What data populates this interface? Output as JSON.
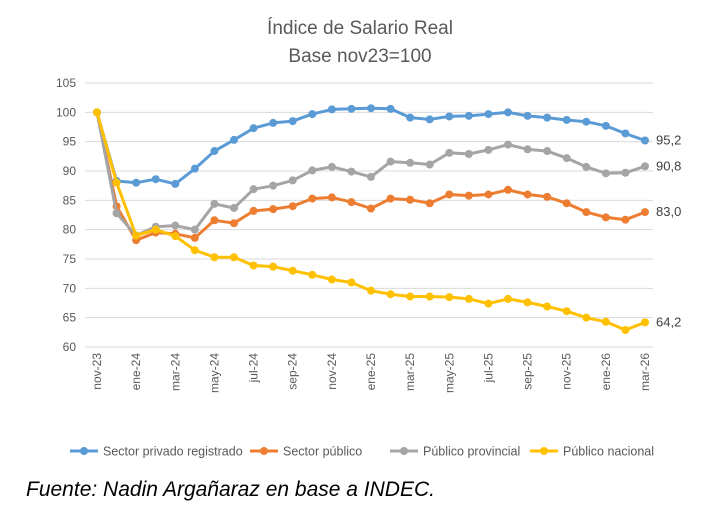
{
  "chart_data": {
    "type": "line",
    "title": "Índice de Salario Real",
    "subtitle": "Base nov23=100",
    "xlabel": "",
    "ylabel": "",
    "ylim": [
      60,
      105
    ],
    "yticks": [
      "60",
      "65",
      "70",
      "75",
      "80",
      "85",
      "90",
      "95",
      "100",
      "105"
    ],
    "grid": true,
    "legend_position": "bottom",
    "categories": [
      "nov-23",
      "dic-23",
      "ene-24",
      "feb-24",
      "mar-24",
      "abr-24",
      "may-24",
      "jun-24",
      "jul-24",
      "ago-24",
      "sep-24",
      "oct-24",
      "nov-24",
      "dic-24",
      "ene-25",
      "feb-25",
      "mar-25",
      "abr-25",
      "may-25",
      "jun-25",
      "jul-25",
      "ago-25",
      "sep-25",
      "oct-25",
      "nov-25",
      "dic-25",
      "ene-26",
      "feb-26",
      "mar-26"
    ],
    "xtick_labels": [
      "nov-23",
      "ene-24",
      "mar-24",
      "may-24",
      "jul-24",
      "sep-24",
      "nov-24",
      "ene-25",
      "mar-25",
      "may-25",
      "jul-25",
      "sep-25",
      "nov-25",
      "ene-26",
      "mar-26"
    ],
    "series": [
      {
        "name": "Sector privado registrado",
        "color": "#5B9BD5",
        "end_label": "95,2",
        "values": [
          100,
          88.3,
          88.0,
          88.6,
          87.8,
          90.4,
          93.4,
          95.3,
          97.3,
          98.2,
          98.5,
          99.7,
          100.5,
          100.6,
          100.7,
          100.6,
          99.1,
          98.8,
          99.3,
          99.4,
          99.7,
          100.0,
          99.4,
          99.1,
          98.7,
          98.4,
          97.7,
          96.4,
          95.2
        ]
      },
      {
        "name": "Sector público",
        "color": "#ED7D31",
        "end_label": "83,0",
        "values": [
          100,
          84.0,
          78.2,
          79.5,
          79.3,
          78.6,
          81.6,
          81.1,
          83.2,
          83.5,
          84.0,
          85.3,
          85.5,
          84.7,
          83.6,
          85.3,
          85.1,
          84.5,
          86.0,
          85.8,
          86.0,
          86.8,
          86.0,
          85.6,
          84.5,
          83.0,
          82.1,
          81.7,
          83.0
        ]
      },
      {
        "name": "Público provincial",
        "color": "#A5A5A5",
        "end_label": "90,8",
        "values": [
          100,
          82.8,
          79.0,
          80.5,
          80.7,
          80.0,
          84.4,
          83.7,
          86.9,
          87.5,
          88.4,
          90.1,
          90.7,
          89.9,
          89.0,
          91.6,
          91.4,
          91.1,
          93.1,
          92.9,
          93.6,
          94.5,
          93.7,
          93.4,
          92.2,
          90.7,
          89.6,
          89.7,
          90.8
        ]
      },
      {
        "name": "Público nacional",
        "color": "#FFC000",
        "end_label": "64,2",
        "values": [
          100,
          88.0,
          79.0,
          80.0,
          78.9,
          76.5,
          75.3,
          75.3,
          73.9,
          73.7,
          73.0,
          72.3,
          71.5,
          71.0,
          69.6,
          69.0,
          68.6,
          68.6,
          68.5,
          68.2,
          67.4,
          68.2,
          67.6,
          66.9,
          66.1,
          65.0,
          64.3,
          62.9,
          64.2
        ]
      }
    ]
  },
  "source_note": "Fuente: Nadin Argañaraz en base a INDEC."
}
